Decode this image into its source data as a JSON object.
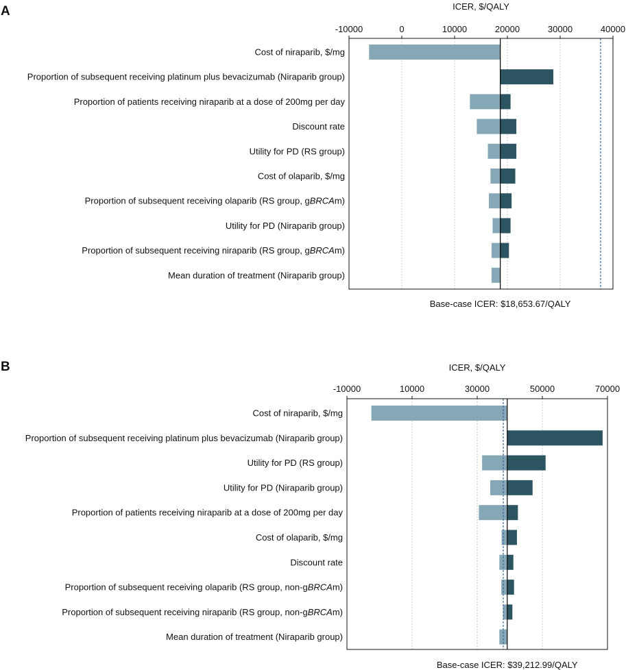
{
  "chart_data": [
    {
      "type": "tornado",
      "panel_label": "A",
      "xlabel": "ICER, $/QALY",
      "footer": "Base-case ICER: $18,653.67/QALY",
      "base_case": 18653.67,
      "threshold": 37653,
      "xlim": [
        -10000,
        40000
      ],
      "ticks": [
        -10000,
        0,
        10000,
        20000,
        30000,
        40000
      ],
      "tick_labels": [
        "-10000",
        "0",
        "10000",
        "20000",
        "30000",
        "40000"
      ],
      "parameters": [
        {
          "label": "Cost of niraparib, $/mg",
          "low": -6200,
          "high": 18653.67
        },
        {
          "label": "Proportion of subsequent receiving platinum plus bevacizumab (Niraparib group)",
          "low": 18653.67,
          "high": 28700
        },
        {
          "label": "Proportion of patients receiving niraparib at a dose of 200mg per day",
          "low": 12900,
          "high": 20600
        },
        {
          "label": "Discount rate",
          "low": 14200,
          "high": 21700
        },
        {
          "label": "Utility for PD (RS group)",
          "low": 16300,
          "high": 21700
        },
        {
          "label": "Cost of olaparib, $/mg",
          "low": 16800,
          "high": 21500
        },
        {
          "label": "Proportion of subsequent receiving olaparib (RS group, gBRCAm)",
          "low": 16500,
          "high": 20800
        },
        {
          "label": "Utility for PD (Niraparib group)",
          "low": 17200,
          "high": 20600
        },
        {
          "label": "Proportion of subsequent receiving niraparib (RS group, gBRCAm)",
          "low": 17000,
          "high": 20300
        },
        {
          "label": "Mean duration of treatment  (Niraparib group)",
          "low": 17000,
          "high": 18653.67
        }
      ]
    },
    {
      "type": "tornado",
      "panel_label": "B",
      "xlabel": "ICER, $/QALY",
      "footer": "Base-case ICER: $39,212.99/QALY",
      "base_case": 39212.99,
      "threshold": 38000,
      "xlim": [
        -10000,
        70000
      ],
      "ticks": [
        -10000,
        10000,
        30000,
        50000,
        70000
      ],
      "tick_labels": [
        "-10000",
        "10000",
        "30000",
        "50000",
        "70000"
      ],
      "parameters": [
        {
          "label": "Cost of niraparib, $/mg",
          "low": -2500,
          "high": 39212.99
        },
        {
          "label": "Proportion of subsequent receiving platinum plus bevacizumab (Niraparib group)",
          "low": 39212.99,
          "high": 68500
        },
        {
          "label": "Utility for PD (RS group)",
          "low": 31500,
          "high": 51000
        },
        {
          "label": "Utility for PD (Niraparib group)",
          "low": 34000,
          "high": 47000
        },
        {
          "label": "Proportion of patients receiving niraparib at a dose of 200mg per day",
          "low": 30500,
          "high": 42500
        },
        {
          "label": "Cost of olaparib, $/mg",
          "low": 37500,
          "high": 42200
        },
        {
          "label": "Discount rate",
          "low": 36800,
          "high": 41100
        },
        {
          "label": "Proportion of subsequent receiving olaparib (RS group, non-gBRCAm)",
          "low": 37400,
          "high": 41300
        },
        {
          "label": "Proportion of subsequent receiving niraparib (RS group, non-gBRCAm)",
          "low": 37900,
          "high": 40800
        },
        {
          "label": "Mean duration of treatment  (Niraparib group)",
          "low": 36800,
          "high": 39212.99
        }
      ]
    }
  ],
  "colors": {
    "low": "#86a8b6",
    "high": "#2d5561",
    "axis": "#111111",
    "grid": "#c9c9c9",
    "threshold": "#3a6a9a"
  },
  "italic_token": "BRCA"
}
